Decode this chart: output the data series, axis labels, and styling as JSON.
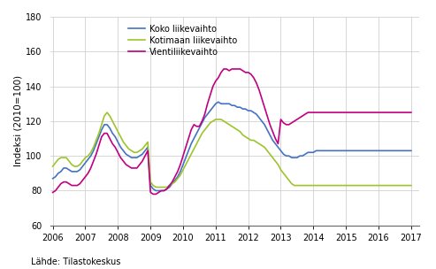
{
  "ylabel": "Indeksi (2010=100)",
  "source": "Lähde: Tilastokeskus",
  "ylim": [
    60,
    180
  ],
  "yticks": [
    60,
    80,
    100,
    120,
    140,
    160,
    180
  ],
  "xlim_start": 2005.92,
  "xlim_end": 2017.25,
  "xticks": [
    2006,
    2007,
    2008,
    2009,
    2010,
    2011,
    2012,
    2013,
    2014,
    2015,
    2016,
    2017
  ],
  "color_koko": "#4472c4",
  "color_kotimaan": "#9dc42b",
  "color_vienti": "#c00080",
  "legend_labels": [
    "Koko liikevaihto",
    "Kotimaan liikevaihto",
    "Vientiliikevaihto"
  ],
  "background_color": "#ffffff",
  "grid_color": "#c8c8c8",
  "koko": [
    87,
    88,
    90,
    91,
    93,
    93,
    92,
    91,
    91,
    91,
    92,
    94,
    96,
    98,
    100,
    103,
    107,
    111,
    115,
    118,
    118,
    116,
    113,
    111,
    108,
    105,
    103,
    101,
    100,
    99,
    99,
    99,
    100,
    101,
    103,
    105,
    83,
    81,
    80,
    80,
    80,
    80,
    81,
    82,
    84,
    86,
    88,
    91,
    95,
    99,
    103,
    107,
    110,
    113,
    116,
    119,
    122,
    124,
    126,
    128,
    130,
    131,
    130,
    130,
    130,
    130,
    129,
    129,
    128,
    128,
    127,
    127,
    126,
    126,
    125,
    124,
    122,
    120,
    118,
    115,
    112,
    109,
    107,
    105,
    103,
    101,
    100,
    100,
    99,
    99,
    99,
    100,
    100,
    101,
    102,
    102,
    102,
    103,
    103,
    103,
    103,
    103,
    103,
    103,
    103,
    103,
    103,
    103,
    103,
    103,
    103,
    103,
    103,
    103,
    103,
    103,
    103,
    103,
    103,
    103,
    103,
    103,
    103,
    103,
    103,
    103,
    103,
    103,
    103,
    103,
    103,
    103,
    103
  ],
  "kotimaan": [
    94,
    96,
    98,
    99,
    99,
    99,
    97,
    95,
    94,
    94,
    95,
    97,
    99,
    100,
    102,
    105,
    109,
    113,
    118,
    123,
    125,
    123,
    120,
    117,
    114,
    111,
    108,
    106,
    104,
    103,
    102,
    102,
    103,
    104,
    106,
    108,
    85,
    83,
    82,
    82,
    82,
    82,
    82,
    83,
    84,
    85,
    87,
    89,
    92,
    95,
    98,
    101,
    104,
    107,
    110,
    113,
    115,
    117,
    119,
    120,
    121,
    121,
    121,
    120,
    119,
    118,
    117,
    116,
    115,
    114,
    112,
    111,
    110,
    109,
    109,
    108,
    107,
    106,
    105,
    103,
    101,
    99,
    97,
    95,
    92,
    90,
    88,
    86,
    84,
    83,
    83,
    83,
    83,
    83,
    83,
    83,
    83,
    83,
    83,
    83,
    83,
    83,
    83,
    83,
    83,
    83,
    83,
    83,
    83,
    83,
    83,
    83,
    83,
    83,
    83,
    83,
    83,
    83,
    83,
    83,
    83,
    83,
    83,
    83,
    83,
    83,
    83,
    83,
    83,
    83,
    83,
    83,
    83
  ],
  "vienti": [
    79,
    80,
    82,
    84,
    85,
    85,
    84,
    83,
    83,
    83,
    84,
    86,
    88,
    90,
    93,
    97,
    101,
    106,
    111,
    113,
    113,
    110,
    107,
    105,
    102,
    99,
    97,
    95,
    94,
    93,
    93,
    93,
    95,
    97,
    100,
    103,
    79,
    78,
    78,
    79,
    80,
    80,
    81,
    83,
    85,
    88,
    91,
    95,
    100,
    105,
    110,
    115,
    118,
    117,
    117,
    120,
    124,
    130,
    135,
    140,
    143,
    145,
    148,
    150,
    150,
    149,
    150,
    150,
    150,
    150,
    149,
    148,
    148,
    147,
    145,
    142,
    138,
    133,
    128,
    123,
    118,
    114,
    110,
    107,
    121,
    119,
    118,
    118,
    119,
    120,
    121,
    122,
    123,
    124,
    125,
    125,
    125,
    125,
    125,
    125,
    125,
    125,
    125,
    125,
    125,
    125,
    125,
    125,
    125,
    125,
    125,
    125,
    125,
    125,
    125,
    125,
    125,
    125,
    125,
    125,
    125,
    125,
    125,
    125,
    125,
    125,
    125,
    125,
    125,
    125,
    125,
    125,
    125
  ]
}
